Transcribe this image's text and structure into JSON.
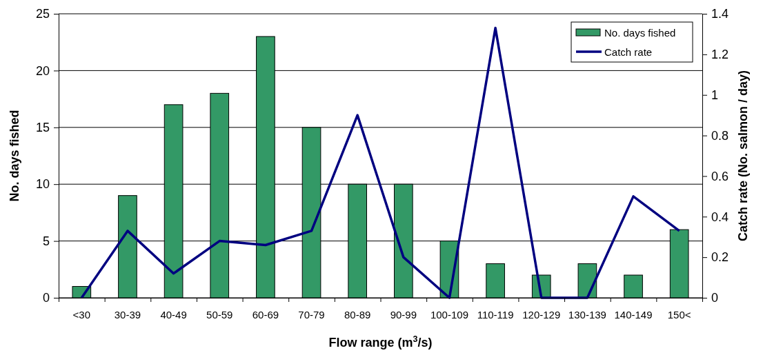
{
  "chart_data": {
    "type": "bar",
    "xlabel": "Flow range (m$^{3}$/s)",
    "ylabel": "No. days fished",
    "y2label": "Catch rate (No. salmon / day)",
    "categories": [
      "<30",
      "30-39",
      "40-49",
      "50-59",
      "60-69",
      "70-79",
      "80-89",
      "90-99",
      "100-109",
      "110-119",
      "120-129",
      "130-139",
      "140-149",
      "150<"
    ],
    "series": [
      {
        "name": "No. days fished",
        "color": "#339966",
        "values": [
          1,
          9,
          17,
          18,
          23,
          15,
          10,
          10,
          5,
          3,
          2,
          3,
          2,
          6
        ]
      },
      {
        "name": "Catch rate",
        "type": "line",
        "axis": "y2",
        "color": "#000080",
        "values": [
          0,
          0.33,
          0.12,
          0.28,
          0.26,
          0.33,
          0.9,
          0.2,
          0,
          1.33,
          0,
          0,
          0.5,
          0.33
        ]
      }
    ],
    "ylim": [
      0,
      25
    ],
    "yticks": [
      0,
      5,
      10,
      15,
      20,
      25
    ],
    "y2lim": [
      0,
      1.4
    ],
    "y2ticks": [
      0,
      0.2,
      0.4,
      0.6,
      0.8,
      1,
      1.2,
      1.4
    ],
    "grid": "y",
    "legend": "top right"
  }
}
